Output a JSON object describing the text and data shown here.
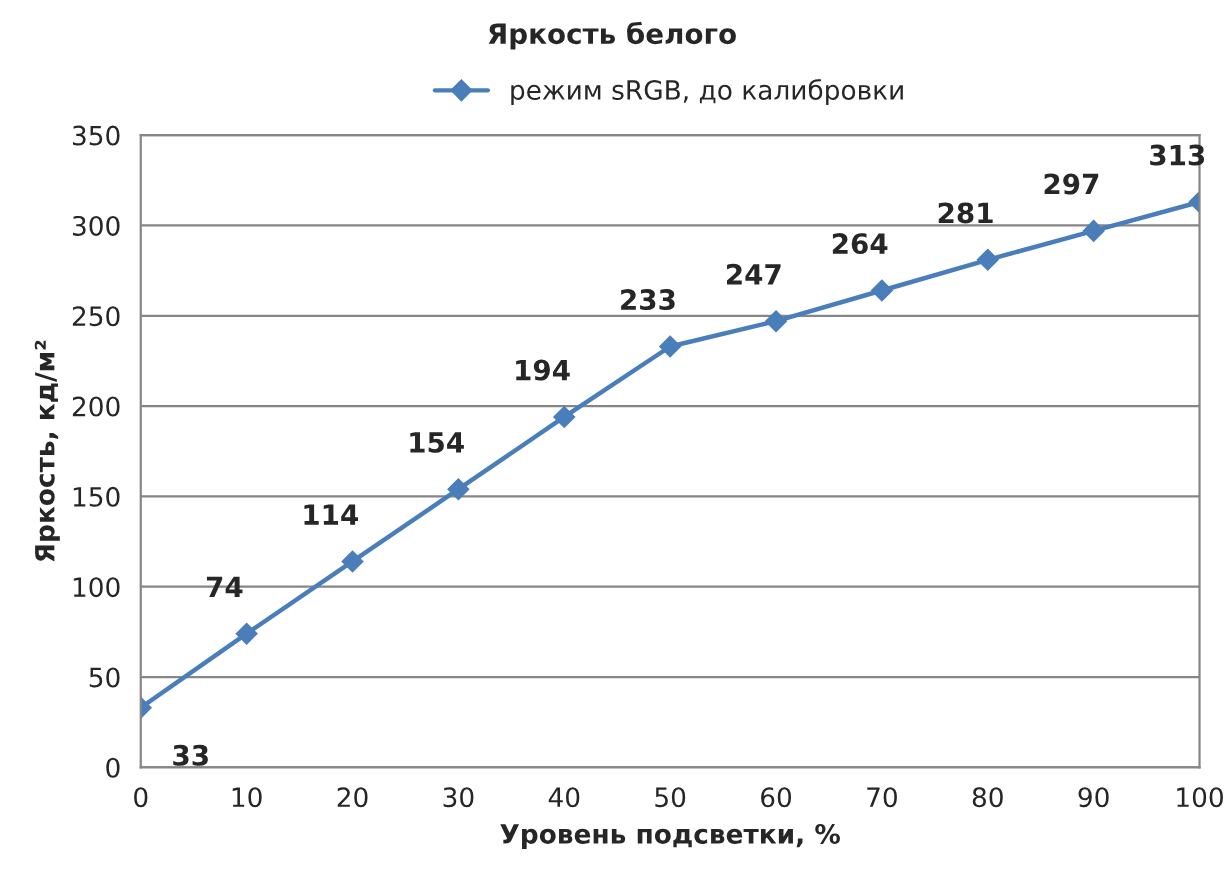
{
  "chart_data": {
    "type": "line",
    "title": "Яркость белого",
    "xlabel": "Уровень подсветки, %",
    "ylabel": "Яркость, кд/м²",
    "x": [
      0,
      10,
      20,
      30,
      40,
      50,
      60,
      70,
      80,
      90,
      100
    ],
    "series": [
      {
        "name": "режим sRGB, до калибровки",
        "color": "#4a7ebb",
        "values": [
          33,
          74,
          114,
          154,
          194,
          233,
          247,
          264,
          281,
          297,
          313
        ]
      }
    ],
    "xlim": [
      0,
      100
    ],
    "xticks": [
      0,
      10,
      20,
      30,
      40,
      50,
      60,
      70,
      80,
      90,
      100
    ],
    "ylim": [
      0,
      350
    ],
    "yticks": [
      0,
      50,
      100,
      150,
      200,
      250,
      300,
      350
    ],
    "grid": "y",
    "legend": "top",
    "marker": "diamond",
    "line_style": "solid",
    "data_labels": true
  }
}
